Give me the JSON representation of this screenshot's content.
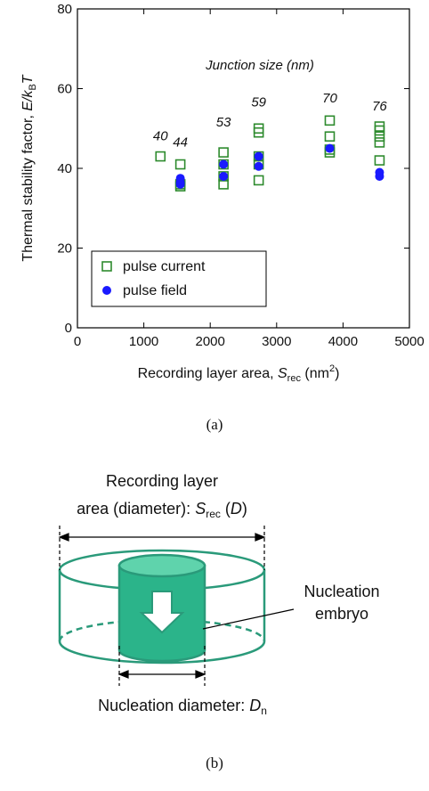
{
  "chart_data": {
    "type": "scatter",
    "xlabel": [
      "Recording layer area, ",
      "S",
      "rec",
      " (nm",
      "2",
      ")"
    ],
    "ylabel": [
      "Thermal stability factor, ",
      "E/k",
      "B",
      "T"
    ],
    "xlim": [
      0,
      5000
    ],
    "xticks": [
      0,
      1000,
      2000,
      3000,
      4000,
      5000
    ],
    "ylim": [
      0,
      80
    ],
    "yticks": [
      0,
      20,
      40,
      60,
      80
    ],
    "legend": "lower left",
    "series": [
      {
        "name": "pulse current",
        "color": "#2e8b2e",
        "marker": "open-square",
        "x": [
          1250,
          1550,
          1550,
          1550,
          2200,
          2200,
          2200,
          2200,
          2730,
          2730,
          2730,
          2730,
          2730,
          3800,
          3800,
          3800,
          3800,
          4550,
          4550,
          4550,
          4550,
          4550
        ],
        "values": [
          43,
          41,
          36,
          35.5,
          44,
          41,
          38,
          36,
          50,
          49,
          43,
          41,
          37,
          52,
          48,
          44.7,
          44,
          50.5,
          49.5,
          48,
          46.5,
          42
        ]
      },
      {
        "name": "pulse field",
        "color": "#1a1aff",
        "marker": "filled-circle",
        "x": [
          1550,
          1550,
          1550,
          2200,
          2200,
          2730,
          2730,
          3800,
          4550,
          4550
        ],
        "values": [
          37.5,
          36.5,
          36,
          41,
          38,
          43,
          40.5,
          45,
          39,
          38
        ]
      }
    ],
    "annotation_title": "Junction size (nm)",
    "annotations": [
      {
        "text": "40",
        "x": 1250,
        "y": 47
      },
      {
        "text": "44",
        "x": 1550,
        "y": 45.5
      },
      {
        "text": "53",
        "x": 2200,
        "y": 50.5
      },
      {
        "text": "59",
        "x": 2730,
        "y": 55.5
      },
      {
        "text": "70",
        "x": 3800,
        "y": 56.5
      },
      {
        "text": "76",
        "x": 4550,
        "y": 54.5
      }
    ],
    "caption": "(a)"
  },
  "diagram": {
    "top_label_line1": "Recording layer",
    "top_label_line2": [
      "area (diameter): ",
      "S",
      "rec",
      " (",
      "D",
      ")"
    ],
    "side_label": [
      "Nucleation",
      "embryo"
    ],
    "bottom_label": [
      "Nucleation diameter: ",
      "D",
      "n"
    ],
    "caption": "(b)"
  }
}
